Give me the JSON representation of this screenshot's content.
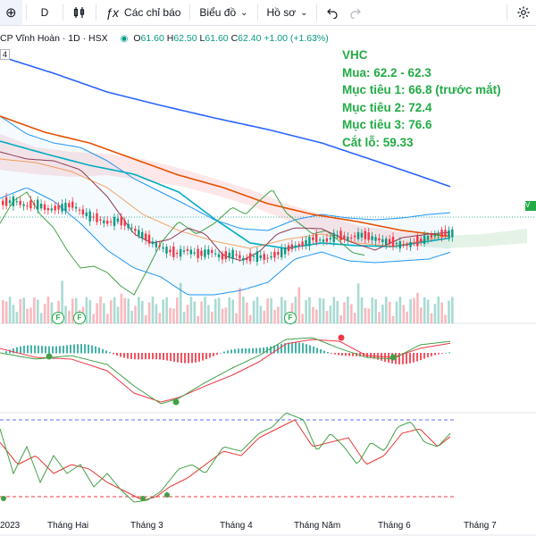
{
  "toolbar": {
    "add_label": "⊕",
    "interval": "D",
    "indicators_label": "Các chỉ báo",
    "fx_label": "ƒx",
    "chart_type_label": "Biểu đồ",
    "profile_label": "Hồ sơ"
  },
  "legend": {
    "symbol": "CP Vĩnh Hoàn · 1D · HSX",
    "open_key": "O",
    "open": "61.60",
    "high_key": "H",
    "high": "62.50",
    "low_key": "L",
    "low": "61.60",
    "close_key": "C",
    "close": "62.40",
    "change": "+1.00 (+1.63%)"
  },
  "annotation": {
    "ticker": "VHC",
    "buy": "Mua: 62.2 - 62.3",
    "target1": "Mục tiêu 1: 66.8 (trước mắt)",
    "target2": "Mục tiêu 2: 72.4",
    "target3": "Mục tiêu 3: 76.6",
    "stoploss": "Cắt lỗ: 59.33"
  },
  "pane_label": "4",
  "price_tag": "V",
  "x_axis": {
    "labels": [
      "2023",
      "Tháng Hai",
      "Tháng 3",
      "Tháng 4",
      "Tháng Năm",
      "Tháng 6",
      "Tháng 7"
    ]
  },
  "event_marker": "F",
  "colors": {
    "up": "#089981",
    "down": "#f23645",
    "annotation": "#22ab45",
    "ma_long": "#2962ff",
    "ma_mid": "#e65100",
    "ma_short": "#00acc1",
    "bollinger": "#2196f3"
  },
  "chart_data": {
    "type": "line",
    "title": "CP Vĩnh Hoàn · 1D · HSX",
    "series": [
      {
        "name": "VHC",
        "values": [
          69.5,
          70.2,
          68.8,
          69.4,
          67.9,
          68.5,
          69.1,
          67.2,
          66.0,
          64.8,
          65.5,
          63.9,
          62.1,
          60.0,
          58.6,
          57.3,
          58.2,
          57.1,
          58.0,
          56.5,
          57.4,
          55.8,
          56.9,
          56.2,
          57.5,
          58.8,
          59.6,
          61.0,
          60.4,
          61.8,
          60.9,
          62.0,
          61.2,
          60.5,
          59.9,
          59.3,
          60.2,
          61.4,
          62.0,
          62.4
        ]
      }
    ]
  }
}
